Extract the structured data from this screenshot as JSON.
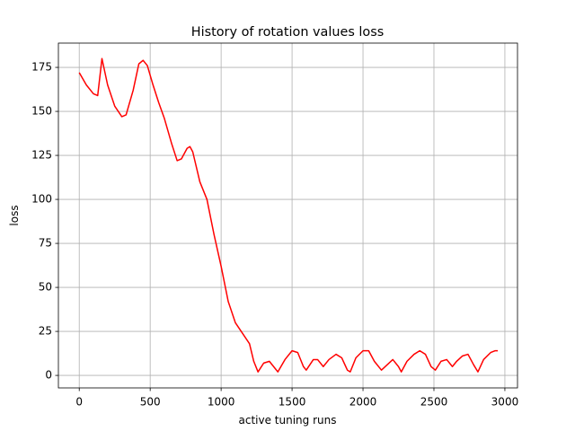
{
  "chart_data": {
    "type": "line",
    "title": "History of rotation values loss",
    "xlabel": "active tuning runs",
    "ylabel": "loss",
    "x": [
      0,
      50,
      100,
      130,
      160,
      200,
      250,
      300,
      330,
      380,
      420,
      450,
      480,
      520,
      560,
      600,
      650,
      690,
      720,
      760,
      780,
      800,
      850,
      900,
      950,
      1000,
      1050,
      1100,
      1150,
      1200,
      1230,
      1260,
      1300,
      1340,
      1380,
      1400,
      1450,
      1500,
      1540,
      1580,
      1600,
      1650,
      1680,
      1720,
      1760,
      1810,
      1850,
      1890,
      1910,
      1950,
      2000,
      2040,
      2080,
      2130,
      2170,
      2210,
      2250,
      2270,
      2310,
      2360,
      2400,
      2440,
      2480,
      2510,
      2550,
      2590,
      2630,
      2660,
      2700,
      2740,
      2780,
      2810,
      2850,
      2900,
      2930,
      2950
    ],
    "series": [
      {
        "name": "loss",
        "color": "#ff0000",
        "values": [
          172,
          165,
          160,
          159,
          180,
          165,
          153,
          147,
          148,
          162,
          177,
          179,
          176,
          165,
          155,
          146,
          132,
          122,
          123,
          129,
          130,
          127,
          110,
          100,
          80,
          62,
          42,
          30,
          24,
          18,
          8,
          2,
          7,
          8,
          4,
          2,
          9,
          14,
          13,
          5,
          3,
          9,
          9,
          5,
          9,
          12,
          10,
          3,
          2,
          10,
          14,
          14,
          8,
          3,
          6,
          9,
          5,
          2,
          8,
          12,
          14,
          12,
          5,
          3,
          8,
          9,
          5,
          8,
          11,
          12,
          6,
          2,
          9,
          13,
          14,
          14
        ]
      }
    ],
    "xlim": [
      -147,
      3089
    ],
    "ylim": [
      -7.1,
      188.8
    ],
    "xticks": [
      0,
      500,
      1000,
      1500,
      2000,
      2500,
      3000
    ],
    "yticks": [
      0,
      25,
      50,
      75,
      100,
      125,
      150,
      175
    ],
    "grid": true
  }
}
